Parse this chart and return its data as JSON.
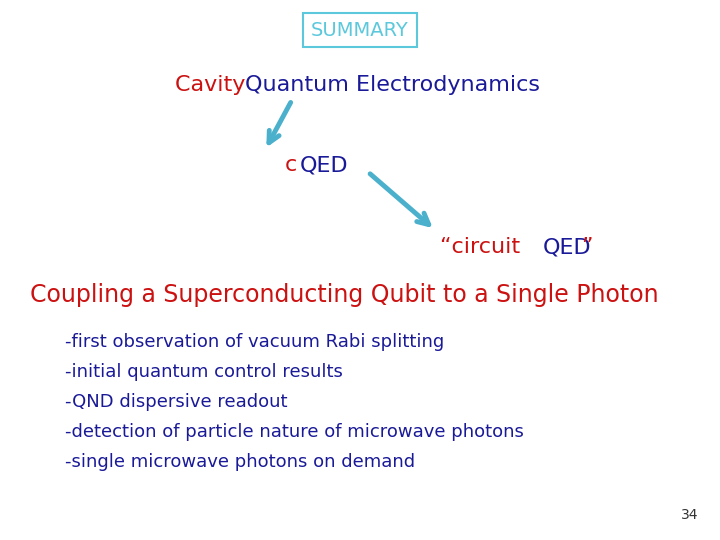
{
  "bg_color": "#ffffff",
  "title_box_text": "SUMMARY",
  "title_box_color": "#5bc8dc",
  "title_fontsize": 14,
  "red_color": "#cc1111",
  "blue_color": "#1a1a99",
  "arrow_color": "#4ab0cc",
  "line1_fontsize": 16,
  "cqed_fontsize": 16,
  "circuit_fontsize": 16,
  "coupling_fontsize": 17,
  "bullet_fontsize": 13,
  "page_num": "34",
  "page_num_fontsize": 10,
  "bullets": [
    "-first observation of vacuum Rabi splitting",
    "-initial quantum control results",
    "-QND dispersive readout",
    "-detection of particle nature of microwave photons",
    "-single microwave photons on demand"
  ]
}
